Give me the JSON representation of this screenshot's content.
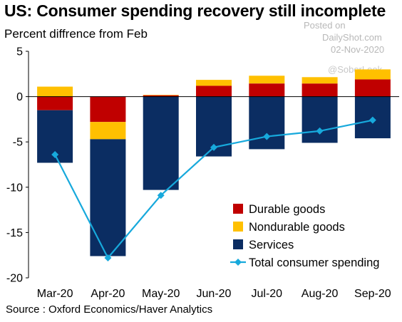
{
  "title": "US: Consumer spending recovery still incomplete",
  "subtitle": "Percent diffrence from Feb",
  "watermark": {
    "posted_on": "Posted on",
    "site": "DailyShot.com",
    "date": "02-Nov-2020",
    "handle": "@SoberLook"
  },
  "source": "Source : Oxford Economics/Haver Analytics",
  "chart_data": {
    "type": "bar",
    "stacked": true,
    "categories": [
      "Mar-20",
      "Apr-20",
      "May-20",
      "Jun-20",
      "Jul-20",
      "Aug-20",
      "Sep-20"
    ],
    "series": [
      {
        "name": "Durable goods",
        "kind": "bar",
        "color": "#c00000",
        "values": [
          -1.5,
          -2.8,
          0.15,
          1.2,
          1.45,
          1.45,
          1.9
        ]
      },
      {
        "name": "Nondurable goods",
        "kind": "bar",
        "color": "#ffc000",
        "values": [
          1.1,
          -1.9,
          0.05,
          0.65,
          0.85,
          0.7,
          1.1
        ]
      },
      {
        "name": "Services",
        "kind": "bar",
        "color": "#0b2d62",
        "values": [
          -5.8,
          -12.9,
          -10.3,
          -6.6,
          -5.8,
          -5.1,
          -4.6
        ]
      },
      {
        "name": "Total consumer spending",
        "kind": "line",
        "color": "#17a9dc",
        "values": [
          -6.4,
          -17.8,
          -10.9,
          -5.6,
          -4.4,
          -3.8,
          -2.6
        ]
      }
    ],
    "ylim": [
      -20,
      5
    ],
    "yticks": [
      5,
      0,
      -5,
      -10,
      -15,
      -20
    ],
    "legend_position": "lower-right",
    "grid": false
  }
}
